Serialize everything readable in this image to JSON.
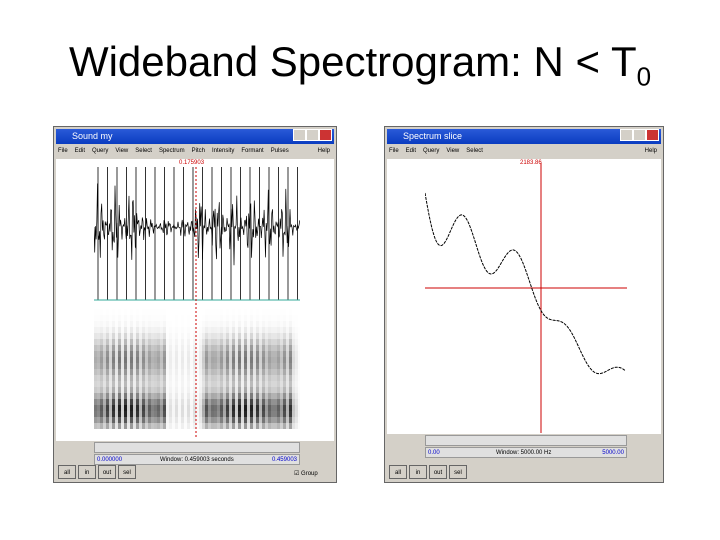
{
  "title": {
    "text": "Wideband Spectrogram: N < T",
    "subscript": "0"
  },
  "windows": [
    {
      "title": "Sound my",
      "menu": [
        "File",
        "Edit",
        "Query",
        "View",
        "Select",
        "Spectrum",
        "Pitch",
        "Intensity",
        "Formant",
        "Pulses"
      ],
      "help": "Help",
      "cursor": "0.175903",
      "start": "0.000000",
      "end": "0.459003",
      "window": "Window: 0.459003 seconds",
      "buttons": [
        "all",
        "in",
        "out",
        "sel"
      ],
      "checkbox": "Group"
    },
    {
      "title": "Spectrum slice",
      "menu": [
        "File",
        "Edit",
        "Query",
        "View",
        "Select"
      ],
      "help": "Help",
      "cursor": "2183.86",
      "start": "0.00",
      "end": "5000.00",
      "window": "Window: 5000.00 Hz",
      "buttons": [
        "all",
        "in",
        "out",
        "sel"
      ]
    }
  ]
}
